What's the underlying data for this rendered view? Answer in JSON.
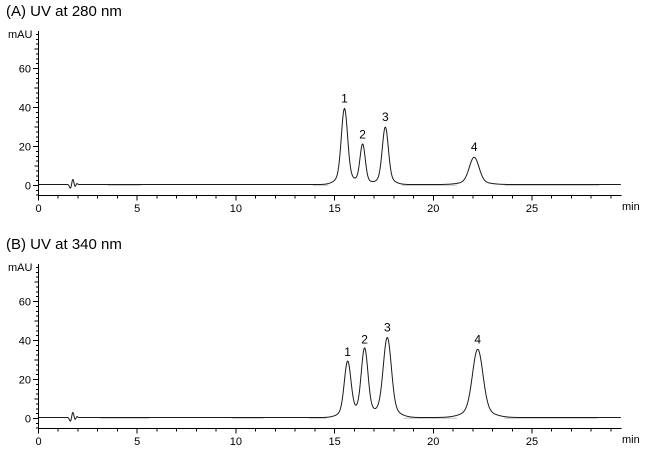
{
  "figure": {
    "background": "#ffffff",
    "trace_color": "#1a1a1a",
    "gray_trace_color": "#c4c4c4",
    "axis_color": "#000000",
    "text_color": "#000000"
  },
  "chart_data": [
    {
      "type": "line",
      "title": "(A) UV at 280 nm",
      "ylabel": "mAU",
      "xlabel": "min",
      "xlim": [
        0,
        29.5
      ],
      "ylim": [
        -7.5,
        79
      ],
      "x_tick_labels": [
        0,
        5,
        10,
        15,
        20,
        25
      ],
      "x_major_tick_step": 5,
      "x_minor_tick_step": 1,
      "y_labeled_ticks": [
        0,
        20,
        40,
        60
      ],
      "y_minor_tick_step": 2.5,
      "grid": "off",
      "baseline_mAU": 0.5,
      "injection_artifact": {
        "center_min": 1.75,
        "components": [
          {
            "t": 1.62,
            "amp": -2.0,
            "sigma": 0.05
          },
          {
            "t": 1.74,
            "amp": 2.8,
            "sigma": 0.05
          },
          {
            "t": 1.85,
            "amp": -1.2,
            "sigma": 0.045
          },
          {
            "t": 1.94,
            "amp": 0.6,
            "sigma": 0.04
          }
        ]
      },
      "peaks": [
        {
          "label": "1",
          "rt_min": 15.5,
          "height_mAU": 39.0,
          "sigma_min": 0.155
        },
        {
          "label": "2",
          "rt_min": 16.42,
          "height_mAU": 20.5,
          "sigma_min": 0.13
        },
        {
          "label": "3",
          "rt_min": 17.57,
          "height_mAU": 29.5,
          "sigma_min": 0.15
        },
        {
          "label": "4",
          "rt_min": 22.07,
          "height_mAU": 14.0,
          "sigma_min": 0.24
        }
      ],
      "gray_baseline_segments_min": [
        [
          3.5,
          5.2
        ],
        [
          13.9,
          14.7
        ],
        [
          18.4,
          21.2
        ],
        [
          23.6,
          28.4
        ]
      ]
    },
    {
      "type": "line",
      "title": "(B) UV at 340 nm",
      "ylabel": "mAU",
      "xlabel": "min",
      "xlim": [
        0,
        29.5
      ],
      "ylim": [
        -7.5,
        79
      ],
      "x_tick_labels": [
        0,
        5,
        10,
        15,
        20,
        25
      ],
      "x_major_tick_step": 5,
      "x_minor_tick_step": 1,
      "y_labeled_ticks": [
        0,
        20,
        40,
        60
      ],
      "y_minor_tick_step": 2.5,
      "grid": "off",
      "baseline_mAU": 0.5,
      "injection_artifact": {
        "center_min": 1.75,
        "components": [
          {
            "t": 1.62,
            "amp": -2.0,
            "sigma": 0.05
          },
          {
            "t": 1.74,
            "amp": 2.8,
            "sigma": 0.05
          },
          {
            "t": 1.85,
            "amp": -1.2,
            "sigma": 0.045
          },
          {
            "t": 1.94,
            "amp": 0.6,
            "sigma": 0.04
          }
        ]
      },
      "peaks": [
        {
          "label": "1",
          "rt_min": 15.66,
          "height_mAU": 28.5,
          "sigma_min": 0.165
        },
        {
          "label": "2",
          "rt_min": 16.52,
          "height_mAU": 35.0,
          "sigma_min": 0.165
        },
        {
          "label": "3",
          "rt_min": 17.67,
          "height_mAU": 41.0,
          "sigma_min": 0.2
        },
        {
          "label": "4",
          "rt_min": 22.25,
          "height_mAU": 35.0,
          "sigma_min": 0.26
        }
      ],
      "gray_baseline_segments_min": [
        [
          3.1,
          5.6
        ],
        [
          9.8,
          11.4
        ],
        [
          13.7,
          14.6
        ],
        [
          18.5,
          21.2
        ],
        [
          23.6,
          28.3
        ]
      ]
    }
  ]
}
